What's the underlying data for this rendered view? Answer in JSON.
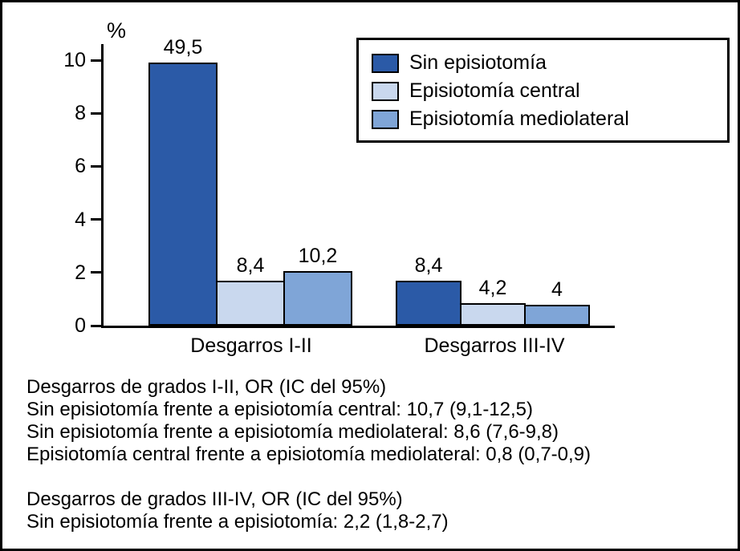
{
  "figure": {
    "background": "#ffffff",
    "border_color": "#000000"
  },
  "chart_data": {
    "type": "bar",
    "title": "",
    "xlabel": "",
    "ylabel": "%",
    "ylim": [
      0,
      10
    ],
    "yticks": [
      0,
      2,
      4,
      6,
      8,
      10
    ],
    "grid": false,
    "legend_position": "top-right",
    "categories": [
      "Desgarros I-II",
      "Desgarros III-IV"
    ],
    "series": [
      {
        "name": "Sin episiotomía",
        "color": "#2b5aa7",
        "values": [
          49.5,
          8.4
        ],
        "value_labels": [
          "49,5",
          "8,4"
        ]
      },
      {
        "name": "Episiotomía central",
        "color": "#c9d8ee",
        "values": [
          8.4,
          4.2
        ],
        "value_labels": [
          "8,4",
          "4,2"
        ]
      },
      {
        "name": "Episiotomía mediolateral",
        "color": "#7fa5d7",
        "values": [
          10.2,
          4.0
        ],
        "value_labels": [
          "10,2",
          "4"
        ]
      }
    ],
    "bar_height_scale": 0.2,
    "note": "As in the original figure, bars are drawn at one fifth of their labeled value on the 0-10 axis."
  },
  "footnotes": {
    "lines": [
      "Desgarros de grados I-II, OR (IC del 95%)",
      "Sin episiotomía frente a episiotomía central: 10,7 (9,1-12,5)",
      "Sin episiotomía frente a episiotomía mediolateral: 8,6 (7,6-9,8)",
      "Episiotomía central frente a episiotomía mediolateral: 0,8 (0,7-0,9)",
      "",
      "Desgarros de grados III-IV, OR (IC del 95%)",
      "Sin episiotomía frente a episiotomía: 2,2 (1,8-2,7)"
    ]
  }
}
